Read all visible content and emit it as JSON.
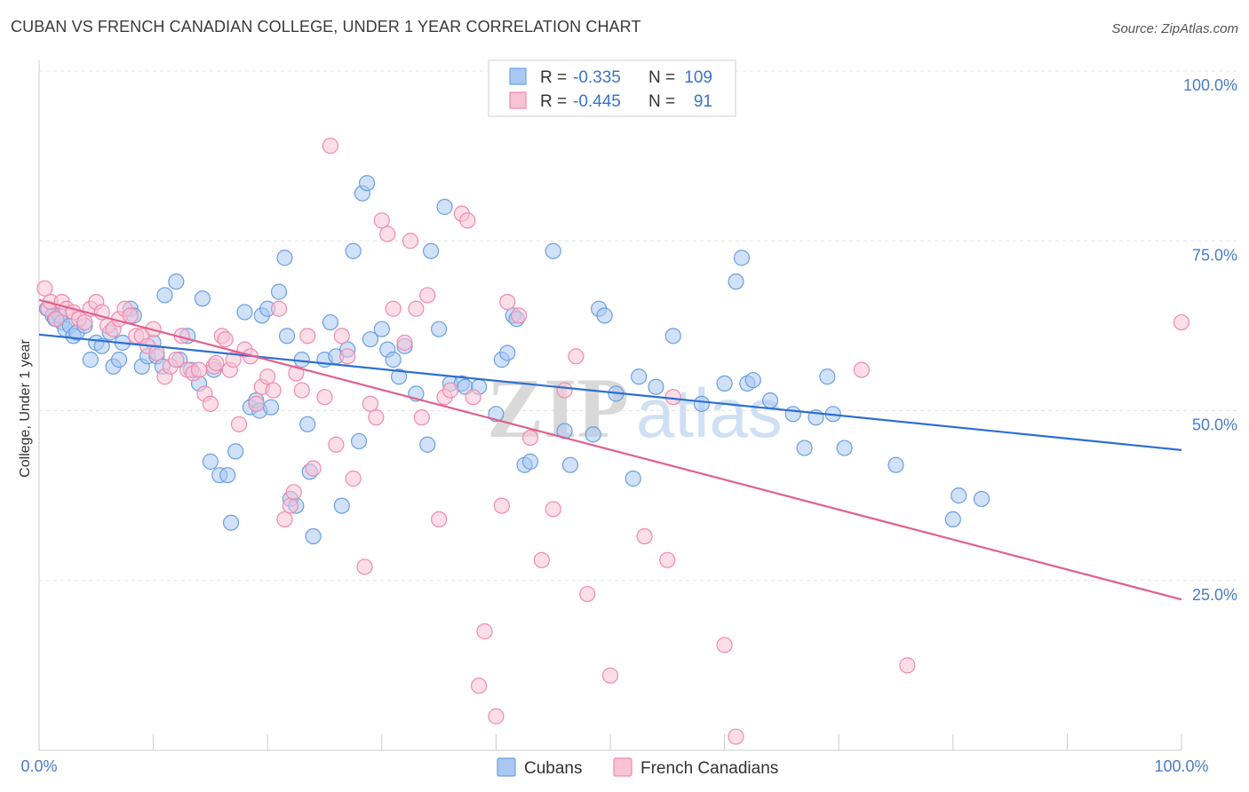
{
  "title": "CUBAN VS FRENCH CANADIAN COLLEGE, UNDER 1 YEAR CORRELATION CHART",
  "source": "Source: ZipAtlas.com",
  "watermark": {
    "zip": "ZIP",
    "atlas": "atlas"
  },
  "chart_data": {
    "type": "scatter",
    "title": "CUBAN VS FRENCH CANADIAN COLLEGE, UNDER 1 YEAR CORRELATION CHART",
    "xlabel": "",
    "ylabel": "College, Under 1 year",
    "xlim": [
      0,
      100
    ],
    "ylim": [
      0,
      100
    ],
    "x_tick_labels": [
      "0.0%",
      "100.0%"
    ],
    "y_tick_labels": [
      "25.0%",
      "50.0%",
      "75.0%",
      "100.0%"
    ],
    "y_ticks": [
      25,
      50,
      75,
      100
    ],
    "grid": "horizontal dashed",
    "legend_position": "top-center",
    "stats": [
      {
        "series": "Cubans",
        "r_label": "R =",
        "r": "-0.335",
        "n_label": "N =",
        "n": "109"
      },
      {
        "series": "French Canadians",
        "r_label": "R =",
        "r": "-0.445",
        "n_label": "N =",
        "n": "91"
      }
    ],
    "series": [
      {
        "name": "Cubans",
        "color": "#6c9fe0",
        "fill": "#a9c8f2",
        "line_color": "#2d6fd2",
        "trend": {
          "x": [
            0,
            100
          ],
          "y": [
            61.2,
            44.2
          ]
        },
        "points": [
          [
            0.7,
            65
          ],
          [
            1.2,
            64
          ],
          [
            1.4,
            63.5
          ],
          [
            1.8,
            64
          ],
          [
            2,
            63
          ],
          [
            2.3,
            62
          ],
          [
            2.7,
            62.5
          ],
          [
            3,
            61
          ],
          [
            3.3,
            61.5
          ],
          [
            4,
            62.5
          ],
          [
            4.5,
            57.5
          ],
          [
            5,
            60
          ],
          [
            5.5,
            59.5
          ],
          [
            6.2,
            61.5
          ],
          [
            6.5,
            56.5
          ],
          [
            7,
            57.5
          ],
          [
            7.3,
            60
          ],
          [
            8,
            65
          ],
          [
            8.3,
            64
          ],
          [
            9,
            56.5
          ],
          [
            9.5,
            58
          ],
          [
            10,
            60
          ],
          [
            10.3,
            58
          ],
          [
            10.8,
            56.5
          ],
          [
            11,
            67
          ],
          [
            12,
            69
          ],
          [
            12.3,
            57.5
          ],
          [
            13,
            61
          ],
          [
            13.3,
            56
          ],
          [
            14,
            54
          ],
          [
            14.3,
            66.5
          ],
          [
            15,
            42.5
          ],
          [
            15.3,
            56
          ],
          [
            15.8,
            40.5
          ],
          [
            16.5,
            40.5
          ],
          [
            16.8,
            33.5
          ],
          [
            17.2,
            44
          ],
          [
            18,
            64.5
          ],
          [
            18.5,
            50.5
          ],
          [
            19,
            51.5
          ],
          [
            19.3,
            50
          ],
          [
            19.5,
            64
          ],
          [
            20,
            65
          ],
          [
            20.3,
            50.5
          ],
          [
            21,
            67.5
          ],
          [
            21.5,
            72.5
          ],
          [
            21.7,
            61
          ],
          [
            22,
            37
          ],
          [
            22.5,
            36
          ],
          [
            23,
            57.5
          ],
          [
            23.5,
            48
          ],
          [
            23.7,
            41
          ],
          [
            24,
            31.5
          ],
          [
            25,
            57.5
          ],
          [
            25.5,
            63
          ],
          [
            26,
            58
          ],
          [
            26.5,
            36
          ],
          [
            27,
            59
          ],
          [
            27.5,
            73.5
          ],
          [
            28,
            45.5
          ],
          [
            28.3,
            82
          ],
          [
            28.7,
            83.5
          ],
          [
            29,
            60.5
          ],
          [
            30,
            62
          ],
          [
            30.5,
            59
          ],
          [
            31,
            57.5
          ],
          [
            31.5,
            55
          ],
          [
            32,
            59.5
          ],
          [
            33,
            52.5
          ],
          [
            34,
            45
          ],
          [
            34.3,
            73.5
          ],
          [
            35,
            62
          ],
          [
            35.5,
            80
          ],
          [
            36,
            54
          ],
          [
            37,
            54
          ],
          [
            37.3,
            53.5
          ],
          [
            38.5,
            53.5
          ],
          [
            40,
            49.5
          ],
          [
            40.5,
            57.5
          ],
          [
            41,
            58.5
          ],
          [
            41.5,
            64
          ],
          [
            41.8,
            63.5
          ],
          [
            42.5,
            42
          ],
          [
            43,
            42.5
          ],
          [
            45,
            73.5
          ],
          [
            46,
            47
          ],
          [
            46.5,
            42
          ],
          [
            48.5,
            46.5
          ],
          [
            49,
            65
          ],
          [
            49.5,
            64
          ],
          [
            50.5,
            52.5
          ],
          [
            52,
            40
          ],
          [
            52.5,
            55
          ],
          [
            54,
            53.5
          ],
          [
            55.5,
            61
          ],
          [
            58,
            51
          ],
          [
            60,
            54
          ],
          [
            61,
            69
          ],
          [
            61.5,
            72.5
          ],
          [
            62,
            54
          ],
          [
            62.5,
            54.5
          ],
          [
            64,
            51.5
          ],
          [
            66,
            49.5
          ],
          [
            67,
            44.5
          ],
          [
            68,
            49
          ],
          [
            69,
            55
          ],
          [
            69.5,
            49.5
          ],
          [
            70.5,
            44.5
          ],
          [
            75,
            42
          ],
          [
            80,
            34
          ],
          [
            80.5,
            37.5
          ],
          [
            82.5,
            37
          ]
        ]
      },
      {
        "name": "French Canadians",
        "color": "#f08aab",
        "fill": "#f8c3d5",
        "line_color": "#e0608e",
        "trend": {
          "x": [
            0,
            100
          ],
          "y": [
            66.3,
            22.2
          ]
        },
        "points": [
          [
            0.5,
            68
          ],
          [
            0.8,
            65
          ],
          [
            1,
            66
          ],
          [
            1.5,
            63.5
          ],
          [
            2,
            66
          ],
          [
            2.4,
            65
          ],
          [
            3,
            64.5
          ],
          [
            3.5,
            63.5
          ],
          [
            4,
            63
          ],
          [
            4.5,
            65
          ],
          [
            5,
            66
          ],
          [
            5.5,
            64.5
          ],
          [
            6,
            62.5
          ],
          [
            6.5,
            62
          ],
          [
            7,
            63.5
          ],
          [
            7.5,
            65
          ],
          [
            8,
            64
          ],
          [
            8.5,
            61
          ],
          [
            9,
            61
          ],
          [
            9.5,
            59.5
          ],
          [
            10,
            62
          ],
          [
            10.3,
            58.5
          ],
          [
            11,
            55
          ],
          [
            11.5,
            56.5
          ],
          [
            12,
            57.5
          ],
          [
            12.5,
            61
          ],
          [
            13,
            56
          ],
          [
            13.5,
            55.5
          ],
          [
            14,
            56
          ],
          [
            14.5,
            52.5
          ],
          [
            15,
            51
          ],
          [
            15.3,
            56.5
          ],
          [
            15.5,
            57
          ],
          [
            16,
            61
          ],
          [
            16.3,
            60.5
          ],
          [
            16.7,
            56
          ],
          [
            17,
            57.5
          ],
          [
            17.5,
            48
          ],
          [
            18,
            59
          ],
          [
            18.5,
            58
          ],
          [
            19,
            51
          ],
          [
            19.5,
            53.5
          ],
          [
            20,
            55
          ],
          [
            20.5,
            53
          ],
          [
            21,
            65
          ],
          [
            21.5,
            34
          ],
          [
            22,
            36
          ],
          [
            22.3,
            38
          ],
          [
            22.5,
            55.5
          ],
          [
            23,
            53
          ],
          [
            23.5,
            61
          ],
          [
            24,
            41.5
          ],
          [
            25,
            52
          ],
          [
            25.5,
            89
          ],
          [
            26,
            45
          ],
          [
            26.5,
            61
          ],
          [
            27,
            58
          ],
          [
            27.5,
            40
          ],
          [
            28.5,
            27
          ],
          [
            29,
            51
          ],
          [
            29.5,
            49
          ],
          [
            30,
            78
          ],
          [
            30.5,
            76
          ],
          [
            31,
            65
          ],
          [
            32,
            60
          ],
          [
            32.5,
            75
          ],
          [
            33,
            65
          ],
          [
            33.5,
            49
          ],
          [
            34,
            67
          ],
          [
            35,
            34
          ],
          [
            35.5,
            52
          ],
          [
            36,
            53
          ],
          [
            37,
            79
          ],
          [
            37.5,
            78
          ],
          [
            38,
            52
          ],
          [
            38.5,
            9.5
          ],
          [
            39,
            17.5
          ],
          [
            40,
            5
          ],
          [
            40.5,
            36
          ],
          [
            41,
            66
          ],
          [
            42,
            64
          ],
          [
            43,
            46
          ],
          [
            44,
            28
          ],
          [
            45,
            35.5
          ],
          [
            46,
            53
          ],
          [
            47,
            58
          ],
          [
            48,
            23
          ],
          [
            50,
            11
          ],
          [
            53,
            31.5
          ],
          [
            55,
            28
          ],
          [
            55.5,
            52
          ],
          [
            60,
            15.5
          ],
          [
            61,
            2
          ],
          [
            72,
            56
          ],
          [
            76,
            12.5
          ],
          [
            100,
            63
          ]
        ]
      }
    ]
  }
}
